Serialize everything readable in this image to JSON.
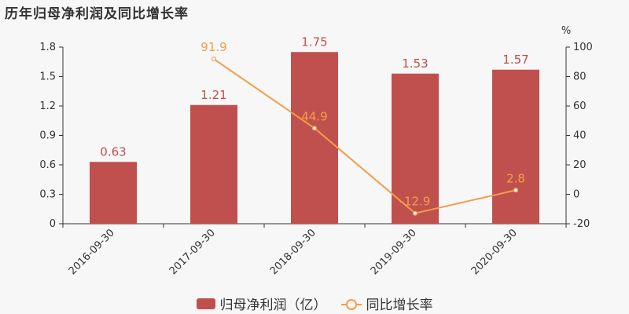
{
  "title": "历年归母净利润及同比增长率",
  "chart_data": {
    "type": "bar",
    "categories": [
      "2016-09-30",
      "2017-09-30",
      "2018-09-30",
      "2019-09-30",
      "2020-09-30"
    ],
    "series": [
      {
        "name": "归母净利润（亿）",
        "type": "bar",
        "axis": "left",
        "values": [
          0.63,
          1.21,
          1.75,
          1.53,
          1.57
        ],
        "color": "#c0504d"
      },
      {
        "name": "同比增长率",
        "type": "line",
        "axis": "right",
        "values": [
          null,
          91.9,
          44.9,
          -12.9,
          2.8
        ],
        "color": "#f39c4a"
      }
    ],
    "y_left": {
      "min": 0,
      "max": 1.8,
      "ticks": [
        "0",
        "0.3",
        "0.6",
        "0.9",
        "1.2",
        "1.5",
        "1.8"
      ]
    },
    "y_right": {
      "min": -20,
      "max": 100,
      "ticks": [
        "-20",
        "0",
        "20",
        "40",
        "60",
        "80",
        "100"
      ],
      "unit": "%"
    },
    "legend_position": "bottom-center",
    "grid": false
  }
}
